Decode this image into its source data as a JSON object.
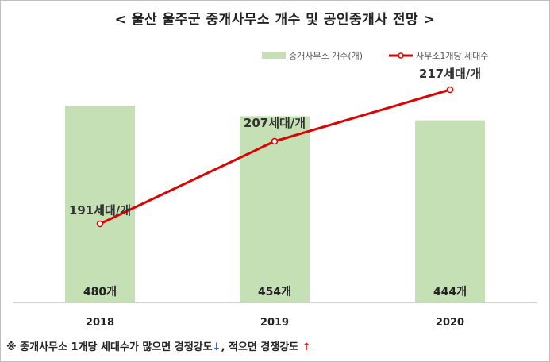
{
  "title": "< 울산 울주군 중개사무소 개수 및 공인중개사 전망 >",
  "footnote": {
    "part1": "※ 중개사무소 1개당 세대수가 많으면 경쟁강도",
    "arrow1": "↓",
    "part2": ", 적으면 경쟁강도",
    "arrow2": "↑"
  },
  "chart_data": {
    "type": "bar+line",
    "categories": [
      "2018",
      "2019",
      "2020"
    ],
    "series": [
      {
        "name": "중개사무소 개수(개)",
        "type": "bar",
        "values": [
          480,
          454,
          444
        ],
        "labels": [
          "480개",
          "454개",
          "444개"
        ],
        "color": "#c5e0b4"
      },
      {
        "name": "사무소1개당 세대수",
        "type": "line",
        "values": [
          191,
          207,
          217
        ],
        "labels": [
          "191세대/개",
          "207세대/개",
          "217세대/개"
        ],
        "color": "#e00000"
      }
    ],
    "legend_position": "top-right",
    "grid": false
  }
}
